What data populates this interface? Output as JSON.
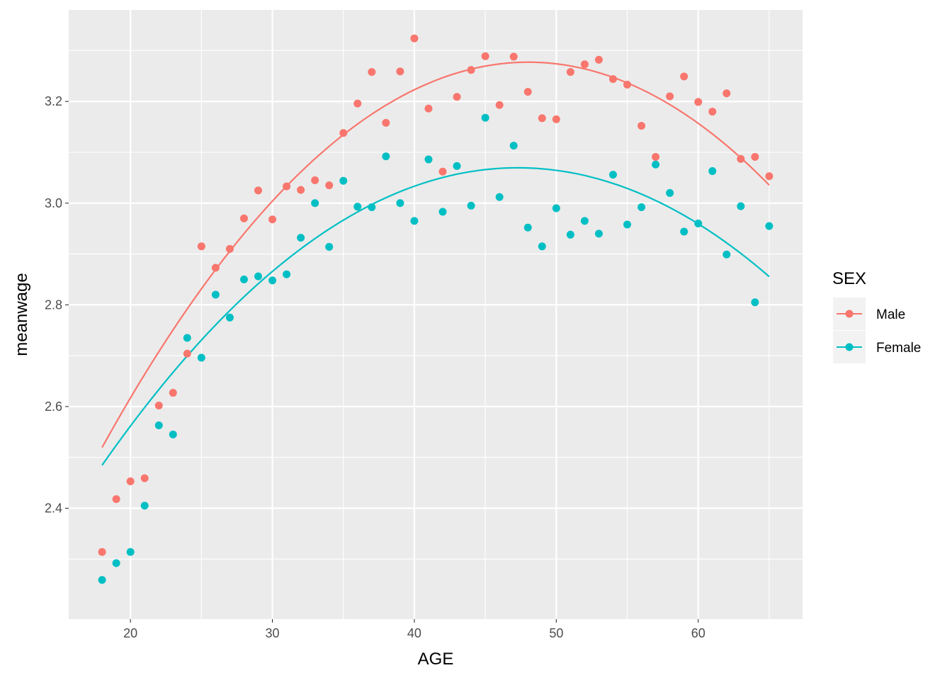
{
  "chart_data": {
    "type": "scatter",
    "xlabel": "AGE",
    "ylabel": "meanwage",
    "xlim": [
      15.65,
      67.35
    ],
    "ylim": [
      2.182,
      3.38
    ],
    "x_ticks": [
      20,
      30,
      40,
      50,
      60
    ],
    "y_ticks": [
      2.4,
      2.6,
      2.8,
      3.0,
      3.2
    ],
    "x_tick_labels": [
      "20",
      "30",
      "40",
      "50",
      "60"
    ],
    "y_tick_labels": [
      "2.4",
      "2.6",
      "2.8",
      "3.0",
      "3.2"
    ],
    "grid": true,
    "legend": {
      "title": "SEX",
      "position": "right"
    },
    "x": [
      18,
      19,
      20,
      21,
      22,
      23,
      24,
      25,
      26,
      27,
      28,
      29,
      30,
      31,
      32,
      33,
      34,
      35,
      36,
      37,
      38,
      39,
      40,
      41,
      42,
      43,
      44,
      45,
      46,
      47,
      48,
      49,
      50,
      51,
      52,
      53,
      54,
      55,
      56,
      57,
      58,
      59,
      60,
      61,
      62,
      63,
      64,
      65
    ],
    "series": [
      {
        "name": "Male",
        "color": "#F8766D",
        "values": [
          2.314,
          2.418,
          2.453,
          2.459,
          2.602,
          2.627,
          2.704,
          2.915,
          2.873,
          2.91,
          2.97,
          3.025,
          2.968,
          3.033,
          3.026,
          3.045,
          3.035,
          3.138,
          3.196,
          3.258,
          3.158,
          3.259,
          3.324,
          3.186,
          3.062,
          3.209,
          3.262,
          3.289,
          3.193,
          3.288,
          3.219,
          3.167,
          3.165,
          3.258,
          3.273,
          3.282,
          3.244,
          3.233,
          3.152,
          3.091,
          3.21,
          3.249,
          3.199,
          3.18,
          3.216,
          3.087,
          3.091,
          3.053
        ],
        "fit": {
          "type": "quadratic",
          "a": -0.00084,
          "b": 0.0807,
          "c": 1.339
        }
      },
      {
        "name": "Female",
        "color": "#00BFC4",
        "values": [
          2.259,
          2.292,
          2.314,
          2.405,
          2.563,
          2.545,
          2.735,
          2.696,
          2.82,
          2.775,
          2.85,
          2.856,
          2.848,
          2.86,
          2.932,
          3.0,
          2.914,
          3.044,
          2.993,
          2.992,
          3.092,
          3.0,
          2.965,
          3.086,
          2.983,
          3.073,
          2.995,
          3.168,
          3.012,
          3.113,
          2.952,
          2.915,
          2.99,
          2.938,
          2.965,
          2.94,
          3.056,
          2.958,
          2.992,
          3.076,
          3.02,
          2.944,
          2.96,
          3.063,
          2.899,
          2.994,
          2.805,
          2.955
        ],
        "fit": {
          "type": "quadratic",
          "a": -0.000682,
          "b": 0.0645,
          "c": 1.5445
        }
      }
    ]
  }
}
